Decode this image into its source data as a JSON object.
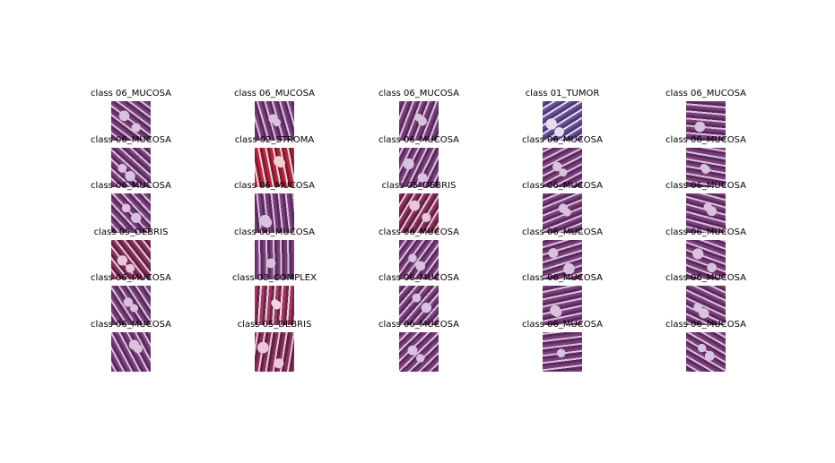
{
  "figure": {
    "rows": [
      [
        "class 06_MUCOSA",
        "class 06_MUCOSA",
        "class 06_MUCOSA",
        "class 01_TUMOR",
        "class 06_MUCOSA"
      ],
      [
        "class 06_MUCOSA",
        "class 02_STROMA",
        "class 06_MUCOSA",
        "class 06_MUCOSA",
        "class 06_MUCOSA"
      ],
      [
        "class 06_MUCOSA",
        "class 06_MUCOSA",
        "class 05_DEBRIS",
        "class 06_MUCOSA",
        "class 06_MUCOSA"
      ],
      [
        "class 05_DEBRIS",
        "class 06_MUCOSA",
        "class 06_MUCOSA",
        "class 06_MUCOSA",
        "class 06_MUCOSA"
      ],
      [
        "class 06_MUCOSA",
        "class 03_COMPLEX",
        "class 06_MUCOSA",
        "class 06_MUCOSA",
        "class 06_MUCOSA"
      ],
      [
        "class 06_MUCOSA",
        "class 05_DEBRIS",
        "class 06_MUCOSA",
        "class 06_MUCOSA",
        "class 06_MUCOSA"
      ]
    ]
  },
  "colors": {
    "06_MUCOSA": [
      "#7a3d78",
      "#d8c2dd",
      "#5a2a5e"
    ],
    "01_TUMOR": [
      "#6a4f8e",
      "#e8dcef",
      "#4a3a78"
    ],
    "02_STROMA": [
      "#b7283b",
      "#f2d2d7",
      "#7e1b34"
    ],
    "05_DEBRIS": [
      "#8d2f5a",
      "#e9c7d9",
      "#5f2143"
    ],
    "03_COMPLEX": [
      "#a13a63",
      "#f0d6e3",
      "#6e2648"
    ]
  }
}
